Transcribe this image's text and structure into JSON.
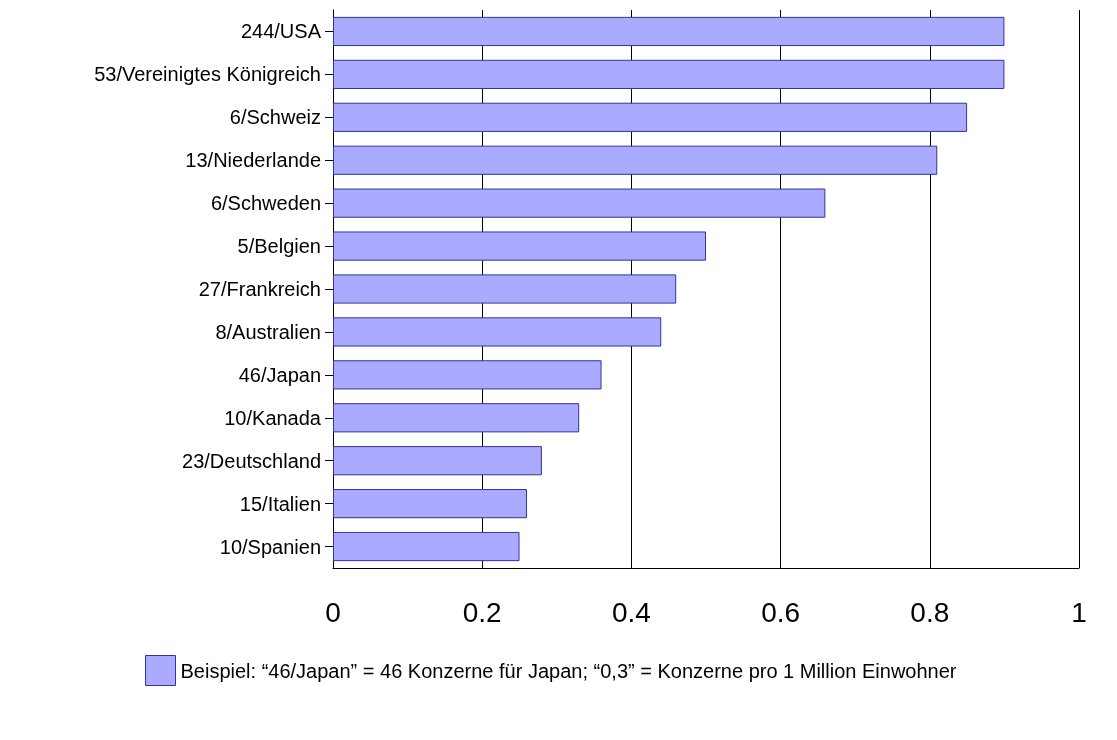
{
  "chart_data": {
    "type": "bar",
    "orientation": "horizontal",
    "categories": [
      "244/USA",
      "53/Vereinigtes Königreich",
      "6/Schweiz",
      "13/Niederlande",
      "6/Schweden",
      "5/Belgien",
      "27/Frankreich",
      "8/Australien",
      "46/Japan",
      "10/Kanada",
      "23/Deutschland",
      "15/Italien",
      "10/Spanien"
    ],
    "series": [
      {
        "name": "Beispiel: “46/Japan” = 46 Konzerne für Japan; “0,3” = Konzerne pro 1 Million Einwohner",
        "color": "#aaaaff",
        "values": [
          0.9,
          0.9,
          0.85,
          0.81,
          0.66,
          0.5,
          0.46,
          0.44,
          0.36,
          0.33,
          0.28,
          0.26,
          0.25
        ]
      }
    ],
    "xlim": [
      0,
      1
    ],
    "xticks": [
      0,
      0.2,
      0.4,
      0.6,
      0.8,
      1
    ],
    "grid": "x",
    "legend": "bottom"
  }
}
